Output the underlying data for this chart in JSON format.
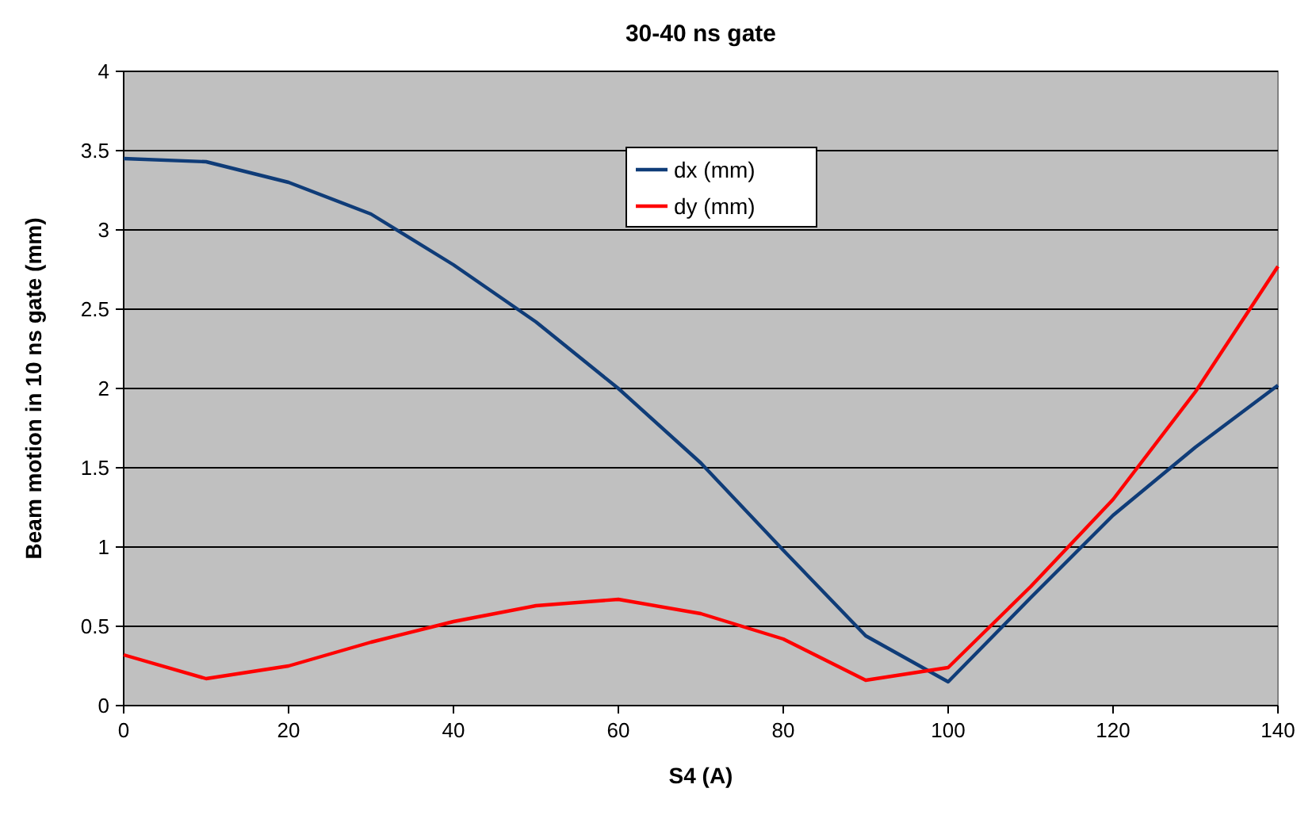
{
  "chart_data": {
    "type": "line",
    "title": "30-40 ns gate",
    "xlabel": "S4 (A)",
    "ylabel": "Beam motion in 10 ns gate (mm)",
    "x": [
      0,
      10,
      20,
      30,
      40,
      50,
      60,
      70,
      80,
      90,
      100,
      110,
      120,
      130,
      140
    ],
    "series": [
      {
        "name": "dx (mm)",
        "color": "#0f3c78",
        "values": [
          3.45,
          3.43,
          3.3,
          3.1,
          2.78,
          2.42,
          2.0,
          1.53,
          0.98,
          0.44,
          0.15,
          0.68,
          1.2,
          1.63,
          2.02
        ]
      },
      {
        "name": "dy (mm)",
        "color": "#ff0000",
        "values": [
          0.32,
          0.17,
          0.25,
          0.4,
          0.53,
          0.63,
          0.67,
          0.58,
          0.42,
          0.16,
          0.24,
          0.75,
          1.3,
          1.98,
          2.77
        ]
      }
    ],
    "xlim": [
      0,
      140
    ],
    "xticks": [
      0,
      20,
      40,
      60,
      80,
      100,
      120,
      140
    ],
    "ylim": [
      0,
      4
    ],
    "yticks": [
      0,
      0.5,
      1,
      1.5,
      2,
      2.5,
      3,
      3.5,
      4
    ],
    "grid": "y",
    "legend": "top",
    "marker": "none",
    "line_style": "solid"
  }
}
